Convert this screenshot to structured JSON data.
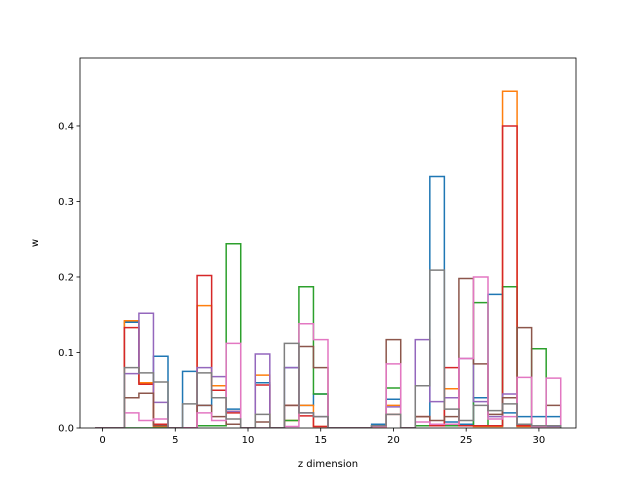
{
  "chart_data": {
    "type": "step-histogram",
    "title": "",
    "xlabel": "z dimension",
    "ylabel": "w",
    "xlim": [
      -1.55,
      32.55
    ],
    "ylim": [
      0,
      0.49
    ],
    "xticks": [
      0,
      5,
      10,
      15,
      20,
      25,
      30
    ],
    "yticks": [
      0.0,
      0.1,
      0.2,
      0.3,
      0.4
    ],
    "ytick_labels": [
      "0.0",
      "0.1",
      "0.2",
      "0.3",
      "0.4"
    ],
    "bin_edges": [
      -0.5,
      0.5,
      1.5,
      2.5,
      3.5,
      4.5,
      5.5,
      6.5,
      7.5,
      8.5,
      9.5,
      10.5,
      11.5,
      12.5,
      13.5,
      14.5,
      15.5,
      16.5,
      17.5,
      18.5,
      19.5,
      20.5,
      21.5,
      22.5,
      23.5,
      24.5,
      25.5,
      26.5,
      27.5,
      28.5,
      29.5,
      30.5,
      31.5
    ],
    "grid": false,
    "legend": false,
    "series": [
      {
        "color": "#1f77b4",
        "values": [
          0,
          0,
          0.14,
          0.06,
          0.095,
          0,
          0.075,
          0.03,
          0.05,
          0.025,
          0,
          0.06,
          0,
          0.08,
          0.03,
          0.045,
          0,
          0,
          0,
          0.005,
          0.038,
          0,
          0.003,
          0.333,
          0.008,
          0.005,
          0.04,
          0.177,
          0.02,
          0.015,
          0.015,
          0.015
        ]
      },
      {
        "color": "#ff7f0e",
        "values": [
          0,
          0,
          0.142,
          0.06,
          0.002,
          0,
          0,
          0.162,
          0.056,
          0.022,
          0,
          0.07,
          0,
          0.01,
          0.03,
          0.002,
          0,
          0,
          0,
          0.002,
          0.03,
          0,
          0.003,
          0.003,
          0.052,
          0.003,
          0.002,
          0.002,
          0.446,
          0.002,
          0.002,
          0.002
        ]
      },
      {
        "color": "#2ca02c",
        "values": [
          0,
          0,
          0,
          0,
          0,
          0,
          0,
          0.003,
          0.003,
          0.244,
          0,
          0,
          0,
          0.01,
          0.187,
          0.045,
          0,
          0,
          0,
          0.003,
          0.053,
          0,
          0.003,
          0.003,
          0.003,
          0.003,
          0.166,
          0.003,
          0.187,
          0.003,
          0.105,
          0.003
        ]
      },
      {
        "color": "#d62728",
        "values": [
          0,
          0,
          0.133,
          0.058,
          0.005,
          0,
          0,
          0.202,
          0.05,
          0.02,
          0,
          0.057,
          0,
          0.03,
          0.016,
          0.002,
          0,
          0,
          0,
          0.002,
          0.018,
          0,
          0.015,
          0.003,
          0.08,
          0.003,
          0.003,
          0.003,
          0.4,
          0.003,
          0.003,
          0.003
        ]
      },
      {
        "color": "#9467bd",
        "values": [
          0,
          0,
          0.072,
          0.152,
          0.034,
          0,
          0,
          0.08,
          0.068,
          0.022,
          0,
          0.098,
          0,
          0.08,
          0.02,
          0.015,
          0,
          0,
          0,
          0.003,
          0.028,
          0,
          0.117,
          0.035,
          0.04,
          0.092,
          0.035,
          0.015,
          0.045,
          0.005,
          0.002,
          0.002
        ]
      },
      {
        "color": "#8c564b",
        "values": [
          0,
          0,
          0.04,
          0.046,
          0.003,
          0,
          0,
          0.03,
          0.015,
          0.005,
          0,
          0.008,
          0,
          0.03,
          0.108,
          0.08,
          0,
          0,
          0,
          0.003,
          0.117,
          0,
          0.015,
          0.01,
          0.015,
          0.198,
          0.085,
          0.018,
          0.04,
          0.133,
          0.003,
          0.03
        ]
      },
      {
        "color": "#e377c2",
        "values": [
          0,
          0,
          0.02,
          0.01,
          0.012,
          0,
          0,
          0.02,
          0.01,
          0.112,
          0,
          0,
          0,
          0.002,
          0.138,
          0.117,
          0,
          0,
          0,
          0.002,
          0.085,
          0,
          0.008,
          0.005,
          0.005,
          0.092,
          0.2,
          0.012,
          0.015,
          0.067,
          0.002,
          0.066
        ]
      },
      {
        "color": "#7f7f7f",
        "values": [
          0,
          0,
          0.08,
          0.073,
          0.061,
          0,
          0.032,
          0.073,
          0.04,
          0.012,
          0,
          0.018,
          0,
          0.112,
          0.02,
          0.015,
          0,
          0,
          0,
          0.003,
          0.018,
          0,
          0.056,
          0.209,
          0.025,
          0.01,
          0.03,
          0.023,
          0.032,
          0.005,
          0.003,
          0.003
        ]
      }
    ]
  }
}
